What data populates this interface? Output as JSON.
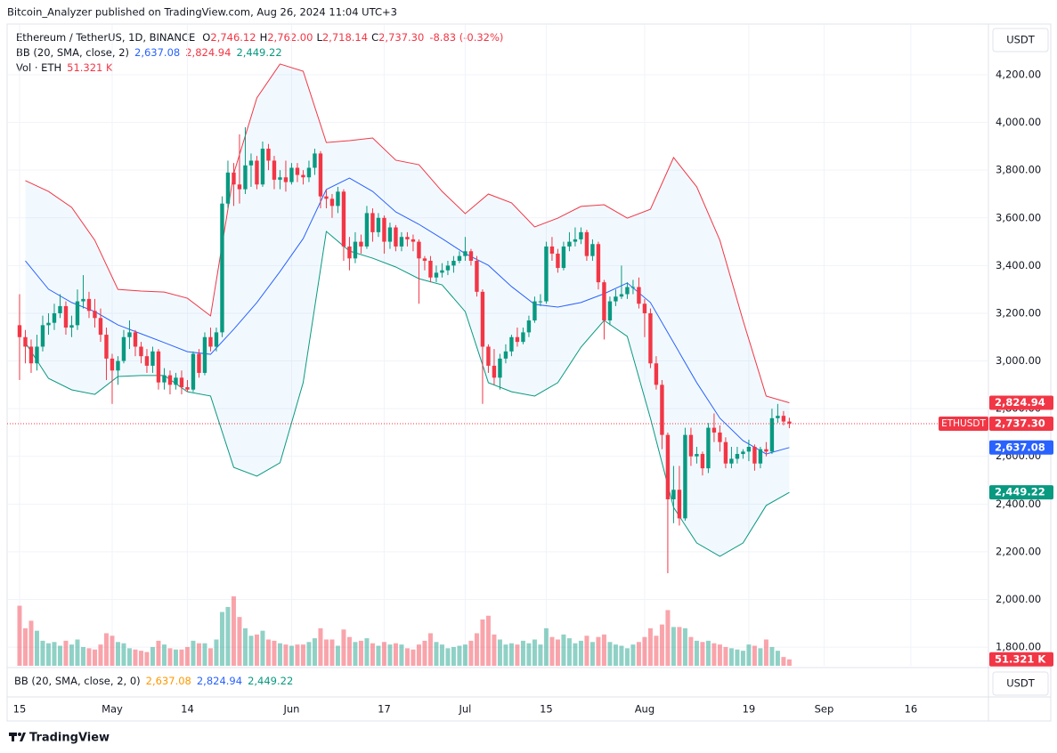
{
  "chart_data": {
    "type": "candlestick",
    "published": "Bitcoin_Analyzer published on TradingView.com, Aug 26, 2024 11:04 UTC+3",
    "symbol": "Ethereum / TetherUS, 1D, BINANCE",
    "quote": [
      {
        "key": "O",
        "value": "2,746.12"
      },
      {
        "key": "H",
        "value": "2,762.00"
      },
      {
        "key": "L",
        "value": "2,718.14"
      },
      {
        "key": "C",
        "value": "2,737.30"
      }
    ],
    "change": "-8.83 (-0.32%)",
    "bb_label": "BB (20, SMA, close, 2)",
    "bb_pane_label": "BB (20, SMA, close, 2, 0)",
    "bb_values": [
      "2,637.08",
      "2,824.94",
      "2,449.22"
    ],
    "vol_label": "Vol · ETH",
    "currency": "USDT",
    "tag_symbol": "ETHUSDT",
    "brand": "TradingView",
    "up_color": "#089981",
    "down_color": "#f23645",
    "xlim": [
      -2.15,
      167.4
    ],
    "xticks": [
      {
        "value": 0,
        "label": "15"
      },
      {
        "value": 16,
        "label": "May"
      },
      {
        "value": 29,
        "label": "14"
      },
      {
        "value": 47,
        "label": "Jun"
      },
      {
        "value": 63,
        "label": "17"
      },
      {
        "value": 77,
        "label": "Jul"
      },
      {
        "value": 91,
        "label": "15"
      },
      {
        "value": 108,
        "label": "Aug"
      },
      {
        "value": 126,
        "label": "19"
      },
      {
        "value": 139,
        "label": "Sep"
      },
      {
        "value": 154,
        "label": "16"
      }
    ],
    "ylim": [
      1722,
      4409
    ],
    "yticks": [
      {
        "value": 1800,
        "label": "1,800.00"
      },
      {
        "value": 2000,
        "label": "2,000.00"
      },
      {
        "value": 2200,
        "label": "2,200.00"
      },
      {
        "value": 2400,
        "label": "2,400.00"
      },
      {
        "value": 2600,
        "label": "2,600.00"
      },
      {
        "value": 2800,
        "label": "2,800.00"
      },
      {
        "value": 3000,
        "label": "3,000.00"
      },
      {
        "value": 3200,
        "label": "3,200.00"
      },
      {
        "value": 3400,
        "label": "3,400.00"
      },
      {
        "value": 3600,
        "label": "3,600.00"
      },
      {
        "value": 3800,
        "label": "3,800.00"
      },
      {
        "value": 4000,
        "label": "4,000.00"
      },
      {
        "value": 4200,
        "label": "4,200.00"
      }
    ],
    "grid": true,
    "candles": [
      [
        3150,
        3280,
        2920,
        3100
      ],
      [
        3100,
        3130,
        2990,
        3060
      ],
      [
        3060,
        3090,
        2950,
        2990
      ],
      [
        2990,
        3110,
        2960,
        3060
      ],
      [
        3060,
        3190,
        3040,
        3150
      ],
      [
        3150,
        3200,
        3110,
        3160
      ],
      [
        3160,
        3240,
        3130,
        3200
      ],
      [
        3200,
        3280,
        3180,
        3230
      ],
      [
        3230,
        3250,
        3110,
        3140
      ],
      [
        3140,
        3190,
        3100,
        3150
      ],
      [
        3150,
        3300,
        3130,
        3250
      ],
      [
        3250,
        3360,
        3220,
        3260
      ],
      [
        3260,
        3290,
        3180,
        3210
      ],
      [
        3210,
        3260,
        3140,
        3180
      ],
      [
        3180,
        3220,
        3080,
        3110
      ],
      [
        3110,
        3140,
        2920,
        3010
      ],
      [
        3010,
        3030,
        2820,
        2960
      ],
      [
        2960,
        3020,
        2900,
        3000
      ],
      [
        3000,
        3130,
        2990,
        3100
      ],
      [
        3100,
        3170,
        3050,
        3120
      ],
      [
        3120,
        3130,
        3020,
        3060
      ],
      [
        3060,
        3080,
        2990,
        3020
      ],
      [
        3020,
        3050,
        2950,
        2980
      ],
      [
        2980,
        3060,
        2950,
        3040
      ],
      [
        3040,
        3050,
        2880,
        2910
      ],
      [
        2910,
        2970,
        2880,
        2940
      ],
      [
        2940,
        2960,
        2860,
        2900
      ],
      [
        2900,
        2950,
        2880,
        2930
      ],
      [
        2930,
        2960,
        2860,
        2890
      ],
      [
        2890,
        2920,
        2870,
        2880
      ],
      [
        2880,
        3040,
        2870,
        3030
      ],
      [
        3030,
        3050,
        2930,
        2950
      ],
      [
        2950,
        3120,
        2940,
        3100
      ],
      [
        3100,
        3140,
        3040,
        3060
      ],
      [
        3060,
        3140,
        3040,
        3120
      ],
      [
        3120,
        3690,
        3100,
        3660
      ],
      [
        3660,
        3840,
        3640,
        3790
      ],
      [
        3790,
        3830,
        3650,
        3740
      ],
      [
        3740,
        3950,
        3660,
        3720
      ],
      [
        3720,
        3980,
        3700,
        3820
      ],
      [
        3820,
        3870,
        3730,
        3840
      ],
      [
        3840,
        3860,
        3720,
        3740
      ],
      [
        3740,
        3920,
        3730,
        3890
      ],
      [
        3890,
        3910,
        3800,
        3840
      ],
      [
        3840,
        3860,
        3720,
        3760
      ],
      [
        3760,
        3800,
        3720,
        3770
      ],
      [
        3770,
        3840,
        3710,
        3750
      ],
      [
        3750,
        3830,
        3740,
        3810
      ],
      [
        3810,
        3830,
        3750,
        3780
      ],
      [
        3780,
        3800,
        3740,
        3770
      ],
      [
        3770,
        3840,
        3750,
        3810
      ],
      [
        3810,
        3890,
        3780,
        3870
      ],
      [
        3870,
        3880,
        3640,
        3690
      ],
      [
        3690,
        3720,
        3640,
        3680
      ],
      [
        3680,
        3700,
        3600,
        3650
      ],
      [
        3650,
        3730,
        3620,
        3710
      ],
      [
        3710,
        3720,
        3420,
        3480
      ],
      [
        3480,
        3520,
        3380,
        3430
      ],
      [
        3430,
        3540,
        3410,
        3500
      ],
      [
        3500,
        3530,
        3450,
        3480
      ],
      [
        3480,
        3650,
        3470,
        3620
      ],
      [
        3620,
        3640,
        3500,
        3540
      ],
      [
        3540,
        3620,
        3520,
        3600
      ],
      [
        3600,
        3610,
        3450,
        3500
      ],
      [
        3500,
        3580,
        3470,
        3560
      ],
      [
        3560,
        3570,
        3460,
        3480
      ],
      [
        3480,
        3540,
        3460,
        3520
      ],
      [
        3520,
        3540,
        3480,
        3510
      ],
      [
        3510,
        3530,
        3460,
        3500
      ],
      [
        3500,
        3510,
        3240,
        3430
      ],
      [
        3430,
        3440,
        3380,
        3420
      ],
      [
        3420,
        3440,
        3330,
        3350
      ],
      [
        3350,
        3400,
        3330,
        3370
      ],
      [
        3370,
        3410,
        3350,
        3380
      ],
      [
        3380,
        3420,
        3360,
        3400
      ],
      [
        3400,
        3440,
        3370,
        3420
      ],
      [
        3420,
        3460,
        3410,
        3440
      ],
      [
        3440,
        3520,
        3420,
        3460
      ],
      [
        3460,
        3470,
        3400,
        3420
      ],
      [
        3420,
        3440,
        3270,
        3290
      ],
      [
        3290,
        3300,
        2820,
        3060
      ],
      [
        3060,
        3070,
        2950,
        2980
      ],
      [
        2980,
        3050,
        2900,
        2930
      ],
      [
        2930,
        3030,
        2880,
        3010
      ],
      [
        3010,
        3070,
        2990,
        3040
      ],
      [
        3040,
        3110,
        3020,
        3100
      ],
      [
        3100,
        3140,
        3060,
        3080
      ],
      [
        3080,
        3140,
        3070,
        3120
      ],
      [
        3120,
        3190,
        3100,
        3170
      ],
      [
        3170,
        3270,
        3160,
        3250
      ],
      [
        3250,
        3280,
        3230,
        3250
      ],
      [
        3250,
        3500,
        3240,
        3480
      ],
      [
        3480,
        3520,
        3420,
        3450
      ],
      [
        3450,
        3470,
        3370,
        3390
      ],
      [
        3390,
        3500,
        3380,
        3480
      ],
      [
        3480,
        3540,
        3460,
        3500
      ],
      [
        3500,
        3560,
        3480,
        3510
      ],
      [
        3510,
        3560,
        3490,
        3540
      ],
      [
        3540,
        3550,
        3420,
        3440
      ],
      [
        3440,
        3510,
        3420,
        3490
      ],
      [
        3490,
        3500,
        3300,
        3330
      ],
      [
        3330,
        3340,
        3090,
        3170
      ],
      [
        3170,
        3270,
        3150,
        3250
      ],
      [
        3250,
        3300,
        3230,
        3270
      ],
      [
        3270,
        3400,
        3260,
        3280
      ],
      [
        3280,
        3330,
        3260,
        3310
      ],
      [
        3310,
        3340,
        3280,
        3310
      ],
      [
        3310,
        3350,
        3220,
        3240
      ],
      [
        3240,
        3260,
        3100,
        3200
      ],
      [
        3200,
        3220,
        2970,
        2990
      ],
      [
        2990,
        3020,
        2880,
        2900
      ],
      [
        2900,
        2920,
        2630,
        2690
      ],
      [
        2690,
        2700,
        2110,
        2420
      ],
      [
        2420,
        2560,
        2320,
        2460
      ],
      [
        2460,
        2560,
        2310,
        2340
      ],
      [
        2340,
        2720,
        2330,
        2690
      ],
      [
        2690,
        2720,
        2560,
        2600
      ],
      [
        2600,
        2640,
        2570,
        2610
      ],
      [
        2610,
        2620,
        2520,
        2550
      ],
      [
        2550,
        2740,
        2530,
        2720
      ],
      [
        2720,
        2780,
        2660,
        2700
      ],
      [
        2700,
        2730,
        2620,
        2660
      ],
      [
        2660,
        2680,
        2550,
        2570
      ],
      [
        2570,
        2640,
        2550,
        2590
      ],
      [
        2590,
        2640,
        2570,
        2610
      ],
      [
        2610,
        2630,
        2590,
        2620
      ],
      [
        2620,
        2670,
        2580,
        2640
      ],
      [
        2640,
        2650,
        2540,
        2570
      ],
      [
        2570,
        2640,
        2550,
        2630
      ],
      [
        2630,
        2660,
        2600,
        2620
      ],
      [
        2620,
        2800,
        2610,
        2760
      ],
      [
        2760,
        2820,
        2740,
        2770
      ],
      [
        2770,
        2790,
        2730,
        2746.12
      ],
      [
        2746.12,
        2762,
        2718.14,
        2737.3
      ]
    ],
    "volume": [
      480,
      300,
      360,
      280,
      200,
      180,
      190,
      160,
      200,
      170,
      210,
      150,
      140,
      130,
      170,
      260,
      240,
      190,
      180,
      140,
      130,
      120,
      110,
      150,
      200,
      170,
      140,
      130,
      130,
      150,
      200,
      180,
      180,
      140,
      210,
      430,
      470,
      555,
      390,
      300,
      240,
      250,
      280,
      210,
      200,
      180,
      170,
      160,
      170,
      170,
      190,
      220,
      300,
      210,
      210,
      160,
      290,
      230,
      190,
      200,
      220,
      180,
      160,
      190,
      170,
      180,
      170,
      140,
      130,
      170,
      200,
      260,
      190,
      170,
      140,
      150,
      160,
      170,
      200,
      260,
      370,
      400,
      250,
      210,
      170,
      180,
      170,
      200,
      180,
      210,
      170,
      300,
      230,
      210,
      250,
      220,
      180,
      200,
      240,
      190,
      230,
      250,
      190,
      170,
      160,
      140,
      170,
      190,
      230,
      300,
      240,
      330,
      445,
      310,
      310,
      300,
      230,
      200,
      190,
      200,
      180,
      170,
      150,
      140,
      130,
      120,
      170,
      160,
      140,
      210,
      150,
      120,
      70,
      51.321
    ],
    "volume_tag": {
      "value": 51.321,
      "label": "51.321 K"
    },
    "bb": {
      "x": [
        1,
        5,
        9,
        13,
        17,
        21,
        25,
        29,
        33,
        37,
        41,
        45,
        49,
        53,
        57,
        61,
        65,
        69,
        73,
        77,
        81,
        85,
        89,
        93,
        97,
        101,
        105,
        109,
        113,
        117,
        121,
        125,
        129,
        133
      ],
      "upper": [
        3756,
        3711,
        3644,
        3506,
        3300,
        3293,
        3289,
        3263,
        3189,
        3786,
        4103,
        4245,
        4215,
        3916,
        3924,
        3935,
        3842,
        3823,
        3711,
        3618,
        3700,
        3663,
        3562,
        3599,
        3648,
        3655,
        3599,
        3636,
        3853,
        3730,
        3506,
        3170,
        2853,
        2824.94
      ],
      "middle": [
        3420,
        3301,
        3245,
        3207,
        3151,
        3114,
        3077,
        3039,
        3028,
        3133,
        3245,
        3375,
        3513,
        3719,
        3767,
        3711,
        3625,
        3573,
        3513,
        3450,
        3401,
        3312,
        3237,
        3226,
        3245,
        3282,
        3327,
        3245,
        3077,
        2909,
        2760,
        2666,
        2610,
        2637.08
      ],
      "lower": [
        3077,
        2927,
        2879,
        2860,
        2935,
        2939,
        2939,
        2871,
        2853,
        2554,
        2517,
        2573,
        2909,
        3543,
        3461,
        3431,
        3394,
        3345,
        3319,
        3207,
        2909,
        2871,
        2853,
        2909,
        3058,
        3170,
        3103,
        2760,
        2386,
        2237,
        2181,
        2237,
        2394,
        2449.22
      ],
      "upper_color": "#f23645",
      "middle_color": "#2962ff",
      "lower_color": "#089981",
      "fill": "#2196f3"
    },
    "tags": [
      {
        "value": 2824.94,
        "label": "2,824.94",
        "color": "#f23645"
      },
      {
        "value": 2737.3,
        "label": "2,737.30",
        "color": "#f23645"
      },
      {
        "value": 2637.08,
        "label": "2,637.08",
        "color": "#2962ff"
      },
      {
        "value": 2449.22,
        "label": "2,449.22",
        "color": "#089981"
      }
    ]
  }
}
